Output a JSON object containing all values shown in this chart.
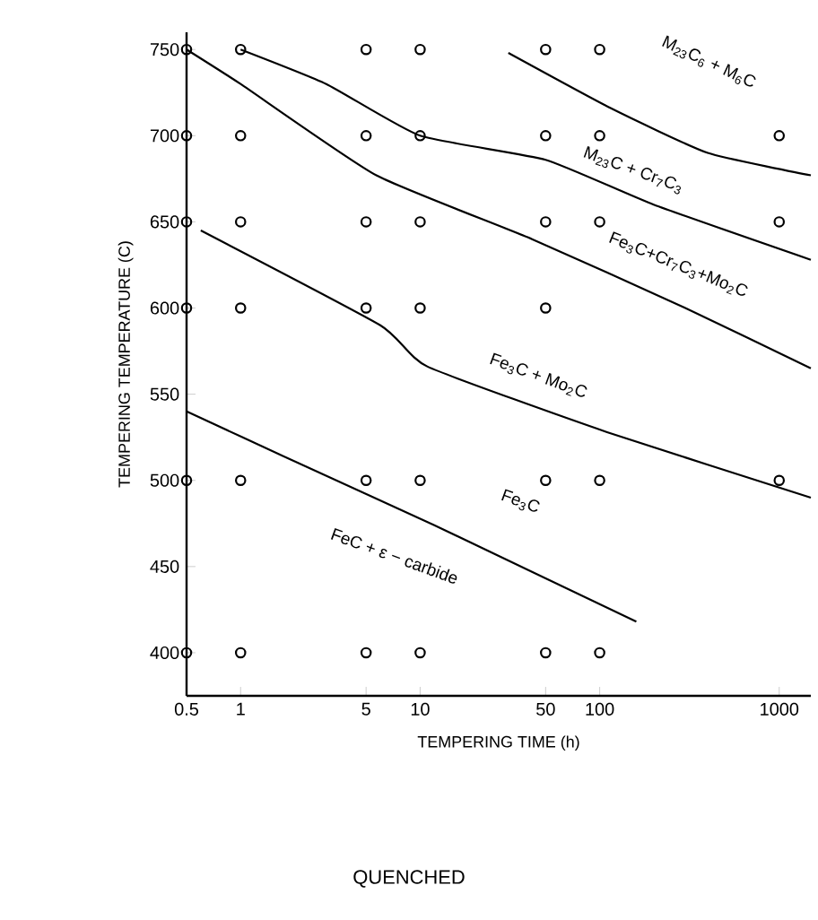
{
  "chart_data": {
    "type": "scatter",
    "xlabel": "TEMPERING TIME (h)",
    "ylabel": "TEMPERING TEMPERATURE (C)",
    "log": "x",
    "xlim": [
      0.5,
      1500
    ],
    "ylim": [
      375,
      760
    ],
    "xticks": [
      0.5,
      1,
      5,
      10,
      50,
      100,
      1000
    ],
    "yticks": [
      400,
      450,
      500,
      550,
      600,
      650,
      700,
      750
    ],
    "series": [
      {
        "marker": "circle",
        "color": "#000000",
        "x": [
          0.5,
          1,
          5,
          10,
          50,
          100,
          0.5,
          1,
          5,
          10,
          50,
          100,
          1000,
          0.5,
          1,
          5,
          10,
          50,
          100,
          1000,
          0.5,
          1,
          5,
          10,
          50,
          0.5,
          1,
          5,
          10,
          50,
          100,
          1000,
          0.5,
          1,
          5,
          10,
          50,
          100
        ],
        "values": [
          750,
          750,
          750,
          750,
          750,
          750,
          700,
          700,
          700,
          700,
          700,
          700,
          700,
          650,
          650,
          650,
          650,
          650,
          650,
          650,
          600,
          600,
          600,
          600,
          600,
          500,
          500,
          500,
          500,
          500,
          500,
          500,
          400,
          400,
          400,
          400,
          400,
          400
        ]
      },
      {
        "type": "line",
        "color": "#000000",
        "x": [
          31,
          115,
          400,
          1500
        ],
        "values": [
          748,
          716,
          690,
          677
        ]
      },
      {
        "type": "line",
        "color": "#000000",
        "x": [
          1,
          3,
          10,
          50,
          200,
          1500
        ],
        "values": [
          750,
          730,
          700,
          686,
          660,
          628
        ]
      },
      {
        "type": "line",
        "color": "#000000",
        "x": [
          0.5,
          1,
          5.7,
          42,
          300,
          1500
        ],
        "values": [
          750,
          730,
          677,
          640,
          600,
          565
        ]
      },
      {
        "type": "line",
        "color": "#000000",
        "x": [
          0.6,
          6,
          11,
          110,
          1500
        ],
        "values": [
          645,
          590,
          566,
          528,
          490
        ]
      },
      {
        "type": "line",
        "color": "#000000",
        "x": [
          0.5,
          2,
          12,
          160
        ],
        "values": [
          540,
          511,
          474,
          418
        ]
      }
    ],
    "annotations": [
      "M$_{23}$C$_{6}$ + M$_{6}$C",
      "M$_{23}$C + Cr$_{7}$C$_{3}$",
      "Fe$_{3}$C+Cr$_{7}$C$_{3}$+Mo$_{2}$C",
      "Fe$_{3}$C + Mo$_{2}$C",
      "Fe$_{3}$C",
      "FeC + ε − carbide",
      "QUENCHED"
    ]
  }
}
